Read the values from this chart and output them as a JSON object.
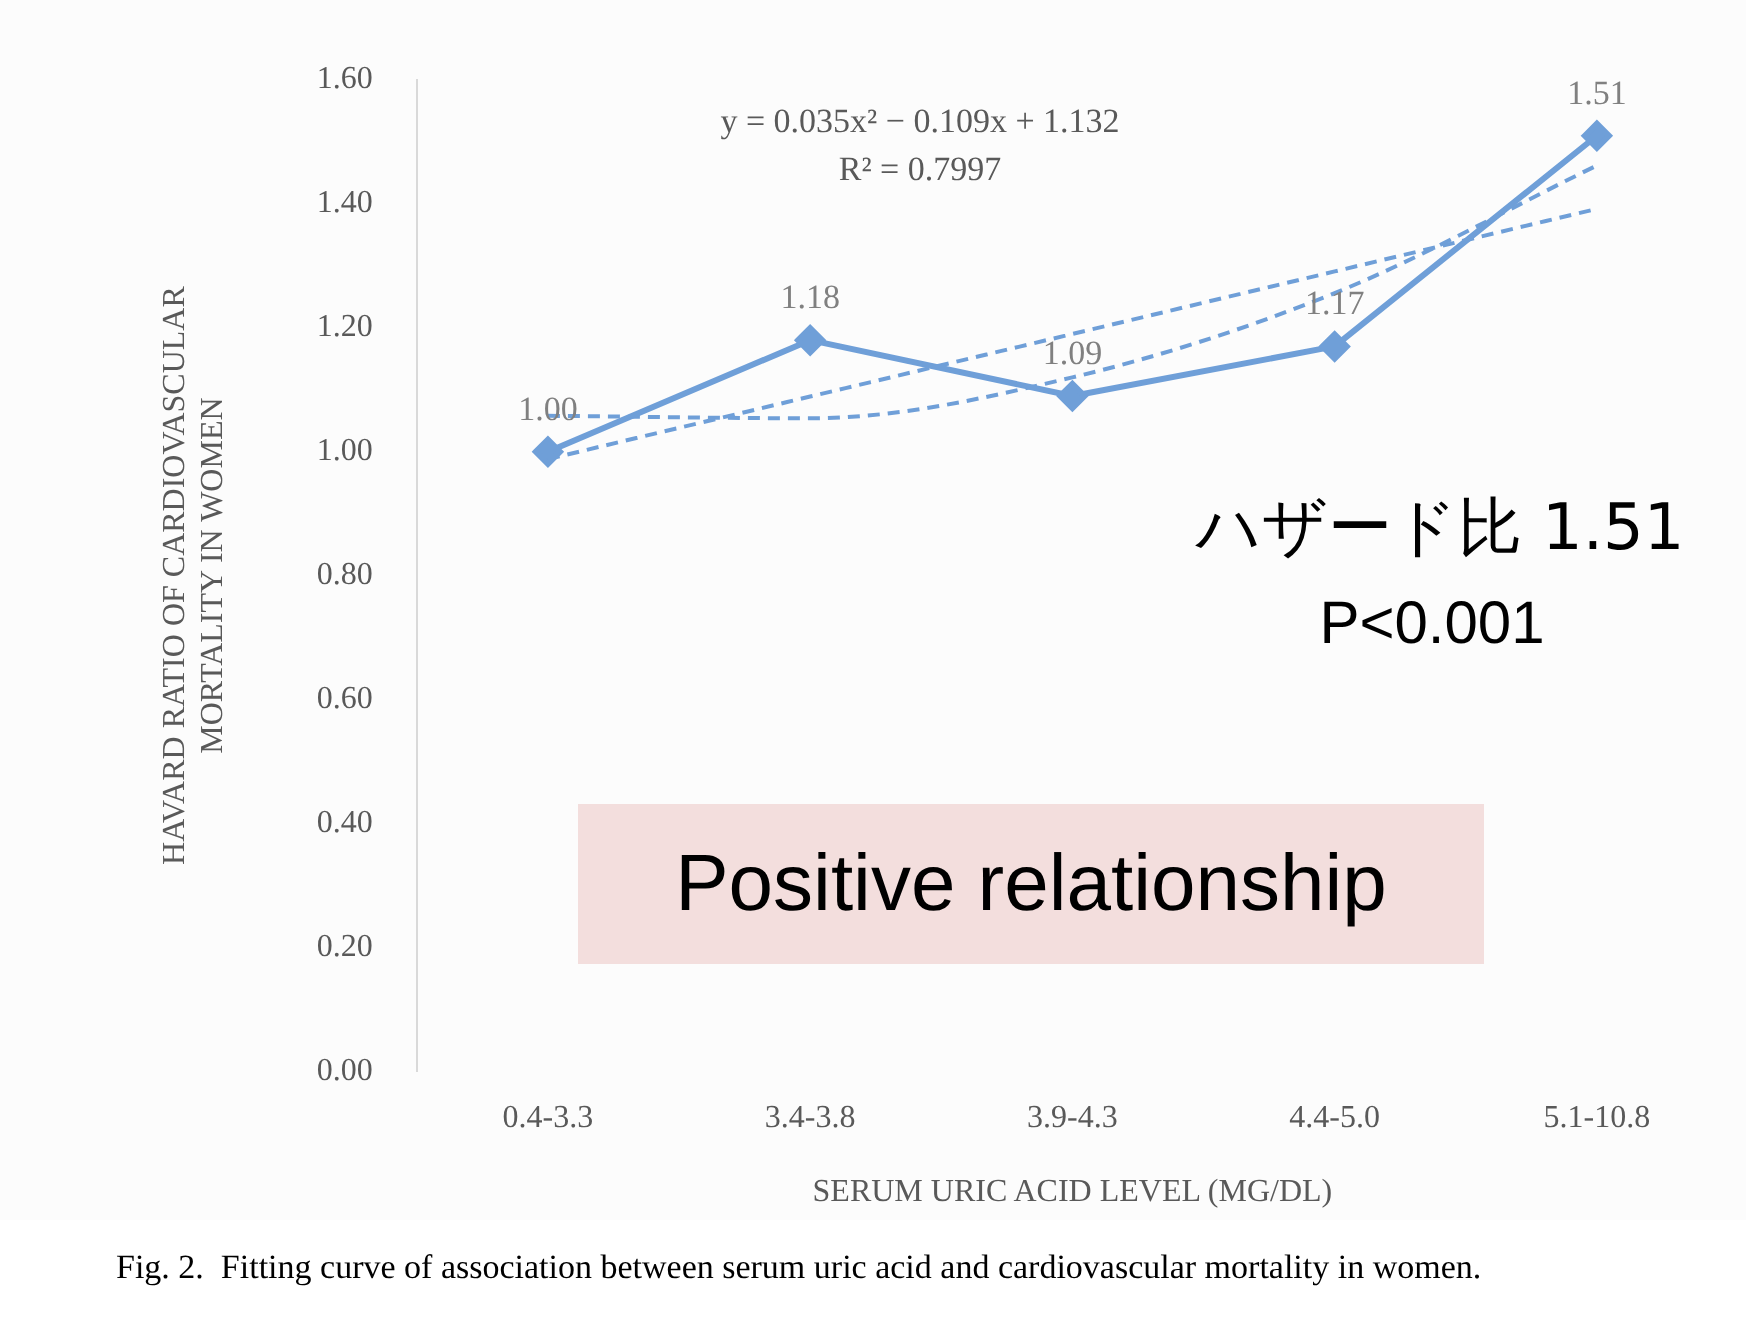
{
  "chart_data": {
    "type": "line",
    "xlabel": "SERUM URIC ACID LEVEL (MG/DL)",
    "ylabel": "HAVARD RATIO OF CARDIOVASCULAR MORTALITY IN WOMEN",
    "categories": [
      "0.4-3.3",
      "3.4-3.8",
      "3.9-4.3",
      "4.4-5.0",
      "5.1-10.8"
    ],
    "series": [
      {
        "color": "#6f9fd8",
        "values": [
          1.0,
          1.18,
          1.09,
          1.17,
          1.51
        ],
        "marker": "diamond",
        "line_style": "solid",
        "value_labels": [
          "1.00",
          "1.18",
          "1.09",
          "1.17",
          "1.51"
        ]
      },
      {
        "color": "#6f9fd8",
        "values": [
          0.988,
          1.089,
          1.19,
          1.291,
          1.392
        ],
        "marker": "none",
        "line_style": "dashed"
      },
      {
        "color": "#6f9fd8",
        "values": [
          1.058,
          1.054,
          1.12,
          1.256,
          1.462
        ],
        "marker": "none",
        "line_style": "dashed"
      }
    ],
    "ylim": [
      0,
      1.6
    ],
    "yticks": [
      {
        "value": 0,
        "label": "0.00"
      },
      {
        "value": 0.2,
        "label": "0.20"
      },
      {
        "value": 0.4,
        "label": "0.40"
      },
      {
        "value": 0.6,
        "label": "0.60"
      },
      {
        "value": 0.8,
        "label": "0.80"
      },
      {
        "value": 1,
        "label": "1.00"
      },
      {
        "value": 1.2,
        "label": "1.20"
      },
      {
        "value": 1.4,
        "label": "1.40"
      },
      {
        "value": 1.6,
        "label": "1.60"
      }
    ],
    "grid": false,
    "legend": false,
    "annotations": [
      "y = 0.035x² − 0.109x + 1.132",
      "R² = 0.7997",
      "ハザード比 1.51",
      "P<0.001",
      "Positive relationship",
      "Fig. 2.  Fitting curve of association between serum uric acid and cardiovascular mortality in women."
    ]
  }
}
